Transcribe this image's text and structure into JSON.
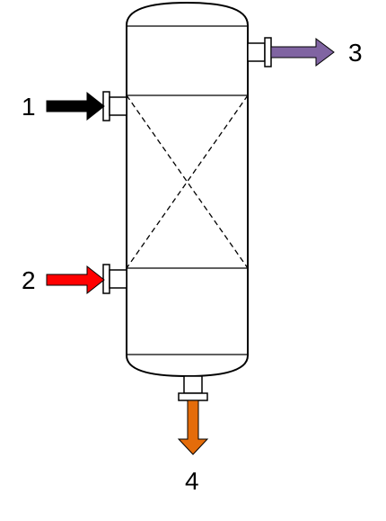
{
  "diagram": {
    "streams": [
      {
        "id": "1",
        "label": "1",
        "color": "#000000",
        "direction": "inlet"
      },
      {
        "id": "2",
        "label": "2",
        "color": "#ff0000",
        "direction": "inlet"
      },
      {
        "id": "3",
        "label": "3",
        "color": "#8064a2",
        "direction": "outlet"
      },
      {
        "id": "4",
        "label": "4",
        "color": "#e46c0a",
        "direction": "outlet"
      }
    ]
  }
}
